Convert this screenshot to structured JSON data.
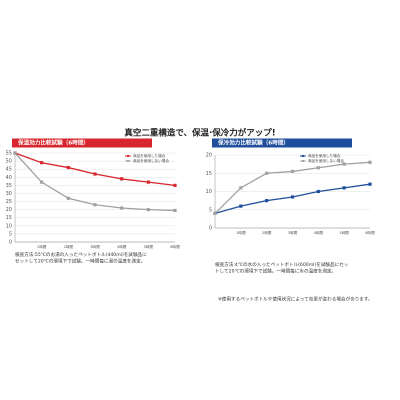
{
  "headline": "真空二重構造で、保温·保冷力がアップ!",
  "footnote": "※使用するペットボトルや使用状況によって効果が変わる場合があります。",
  "chart_data": [
    {
      "type": "line",
      "title": "保温効力比較試験（6時間）",
      "categories": [
        null,
        "1時間",
        "2時間",
        "3時間",
        "4時間",
        "5時間",
        "6時間"
      ],
      "series": [
        {
          "name": "商品を使用した場合",
          "color": "#d7262d",
          "values": [
            55,
            49,
            46,
            42,
            39,
            37,
            35
          ]
        },
        {
          "name": "商品を使用しない場合",
          "color": "#a0a0a0",
          "values": [
            55,
            37,
            27,
            23,
            21,
            20,
            19.5
          ]
        }
      ],
      "ylim": [
        0,
        55
      ],
      "yticks": [
        0,
        5,
        10,
        15,
        20,
        25,
        30,
        35,
        40,
        45,
        50,
        55
      ],
      "grid": true,
      "note": "検査方法:55℃のお湯の入ったペットボトル(440ml)を試験品にセットして20℃の環境下で試験。一時間毎に湯の温度を測定。"
    },
    {
      "type": "line",
      "title": "保冷効力比較試験（6時間）",
      "categories": [
        null,
        "1時間",
        "2時間",
        "3時間",
        "4時間",
        "5時間",
        "6時間"
      ],
      "series": [
        {
          "name": "商品を使用した場合",
          "color": "#1f4f9c",
          "values": [
            4,
            6,
            7.5,
            8.5,
            10,
            11,
            12
          ]
        },
        {
          "name": "商品を使用しない場合",
          "color": "#a0a0a0",
          "values": [
            4,
            11,
            15,
            15.5,
            16.5,
            17.5,
            18
          ]
        }
      ],
      "ylim": [
        0,
        20
      ],
      "yticks": [
        0,
        5,
        10,
        15,
        20
      ],
      "grid": true,
      "note": "検査方法:4℃の水の入ったペットボトル(600ml)を試験品にセットして20℃の環境下で試験。一時間毎に水の温度を測定。"
    }
  ]
}
